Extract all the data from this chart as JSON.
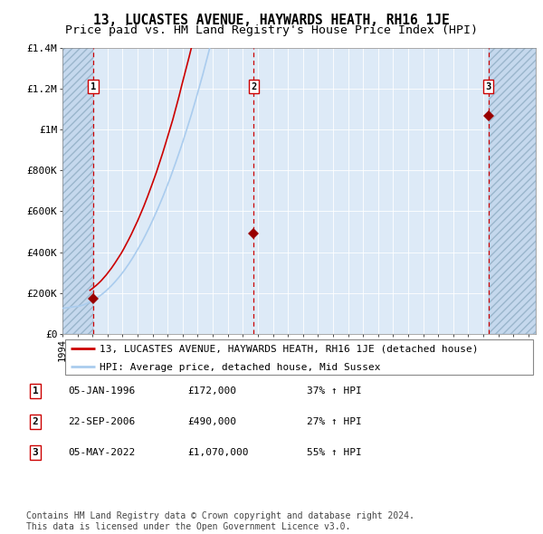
{
  "title": "13, LUCASTES AVENUE, HAYWARDS HEATH, RH16 1JE",
  "subtitle": "Price paid vs. HM Land Registry's House Price Index (HPI)",
  "ylim": [
    0,
    1400000
  ],
  "yticks": [
    0,
    200000,
    400000,
    600000,
    800000,
    1000000,
    1200000,
    1400000
  ],
  "ytick_labels": [
    "£0",
    "£200K",
    "£400K",
    "£600K",
    "£800K",
    "£1M",
    "£1.2M",
    "£1.4M"
  ],
  "x_start_year": 1994,
  "x_end_year": 2025,
  "sale_prices": [
    172000,
    490000,
    1070000
  ],
  "sale_years": [
    1996.04,
    2006.72,
    2022.34
  ],
  "sale_labels": [
    "1",
    "2",
    "3"
  ],
  "hpi_line_color": "#aaccee",
  "price_line_color": "#cc0000",
  "sale_dot_color": "#990000",
  "dashed_line_color": "#cc0000",
  "background_plot_color": "#ddeaf7",
  "background_hatch_color": "#c5d8ed",
  "hatch_pattern": "////",
  "legend_label_price": "13, LUCASTES AVENUE, HAYWARDS HEATH, RH16 1JE (detached house)",
  "legend_label_hpi": "HPI: Average price, detached house, Mid Sussex",
  "table_rows": [
    {
      "num": "1",
      "date": "05-JAN-1996",
      "price": "£172,000",
      "change": "37% ↑ HPI"
    },
    {
      "num": "2",
      "date": "22-SEP-2006",
      "price": "£490,000",
      "change": "27% ↑ HPI"
    },
    {
      "num": "3",
      "date": "05-MAY-2022",
      "price": "£1,070,000",
      "change": "55% ↑ HPI"
    }
  ],
  "footer": "Contains HM Land Registry data © Crown copyright and database right 2024.\nThis data is licensed under the Open Government Licence v3.0.",
  "title_fontsize": 10.5,
  "subtitle_fontsize": 9.5,
  "tick_fontsize": 8,
  "legend_fontsize": 8,
  "table_fontsize": 8,
  "footer_fontsize": 7
}
